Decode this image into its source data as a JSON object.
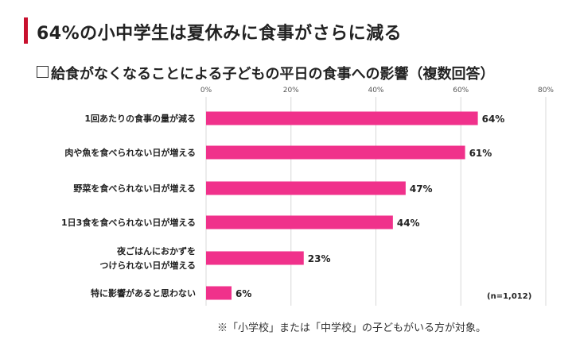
{
  "headline": "64%の小中学生は夏休みに食事がさらに減る",
  "subtitle": "給食がなくなることによる子どもの平日の食事への影響（複数回答）",
  "sample_note": "(n=1,012)",
  "footnote": "※「小学校」または「中学校」の子どもがいる方が対象。",
  "colors": {
    "bar": "#f0318b",
    "accent": "#c8102e",
    "grid": "#d8d8d8"
  },
  "chart_data": {
    "type": "bar",
    "orientation": "horizontal",
    "title": "",
    "xlabel": "",
    "ylabel": "",
    "xlim": [
      0,
      80
    ],
    "ticks": [
      0,
      20,
      40,
      60,
      80
    ],
    "tick_labels": [
      "0%",
      "20%",
      "40%",
      "60%",
      "80%"
    ],
    "grid": true,
    "categories": [
      [
        "1回あたりの食事の量が減る"
      ],
      [
        "肉や魚を食べられない日が増える"
      ],
      [
        "野菜を食べられない日が増える"
      ],
      [
        "1日3食を食べられない日が増える"
      ],
      [
        "夜ごはんにおかずを",
        "つけられない日が増える"
      ],
      [
        "特に影響があると思わない"
      ]
    ],
    "values": [
      64,
      61,
      47,
      44,
      23,
      6
    ],
    "value_labels": [
      "64%",
      "61%",
      "47%",
      "44%",
      "23%",
      "6%"
    ]
  }
}
